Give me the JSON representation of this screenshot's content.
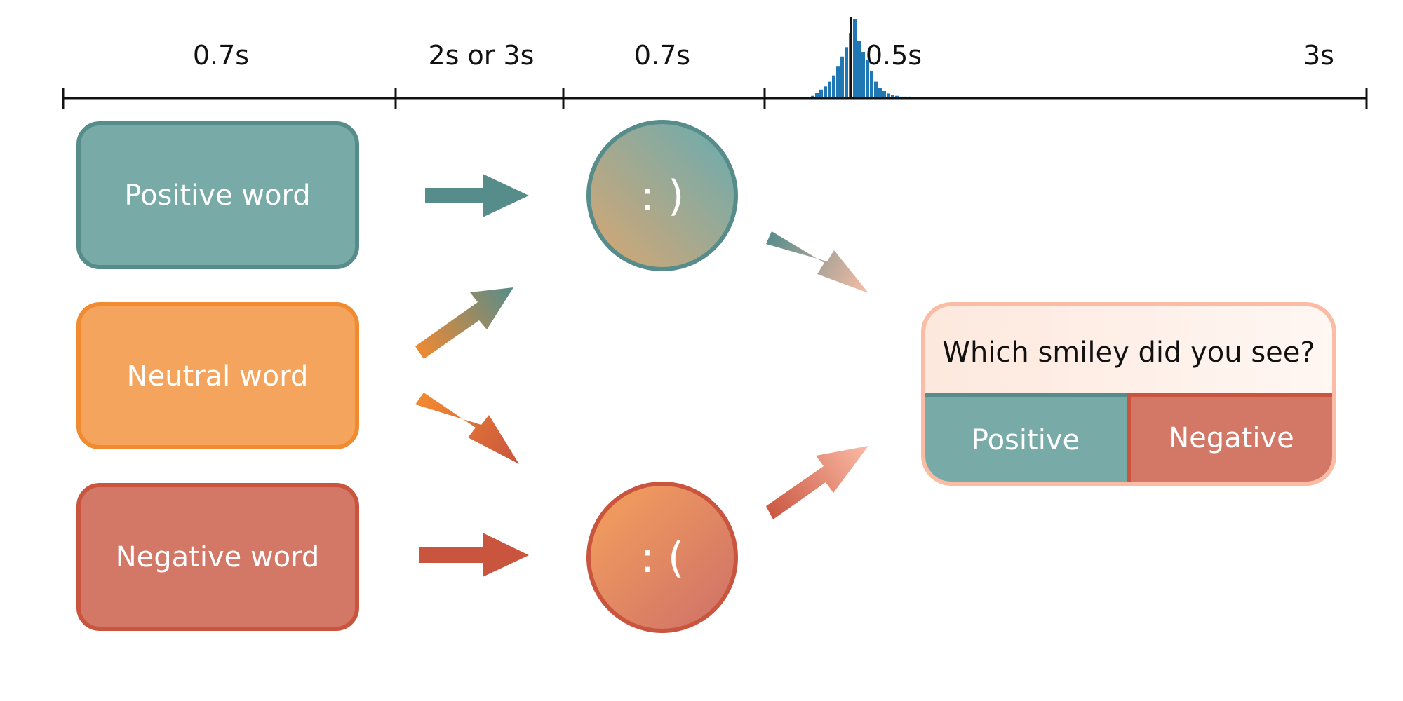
{
  "timeline": {
    "durations": [
      "0.7s",
      "2s or 3s",
      "0.7s",
      "0.5s",
      "3s"
    ]
  },
  "words": {
    "positive": "Positive word",
    "neutral": "Neutral word",
    "negative": "Negative word"
  },
  "smileys": {
    "happy": ": )",
    "sad": ": ("
  },
  "question": {
    "prompt": "Which smiley did you see?",
    "positive_option": "Positive",
    "negative_option": "Negative"
  },
  "histogram": {
    "counts": [
      2,
      6,
      10,
      14,
      20,
      28,
      40,
      52,
      64,
      82,
      100,
      72,
      58,
      48,
      34,
      20,
      12,
      8,
      5,
      3,
      2,
      1,
      1,
      1
    ],
    "marker_bin": 10
  },
  "colors": {
    "teal_fill": "#78aba8",
    "teal_stroke": "#568c8a",
    "orange_fill": "#f4a45c",
    "orange_stroke": "#f28a30",
    "red_fill": "#d37767",
    "red_stroke": "#c9553f",
    "peach_stroke": "#fbbca6",
    "histogram_bar": "#1f77b4"
  }
}
